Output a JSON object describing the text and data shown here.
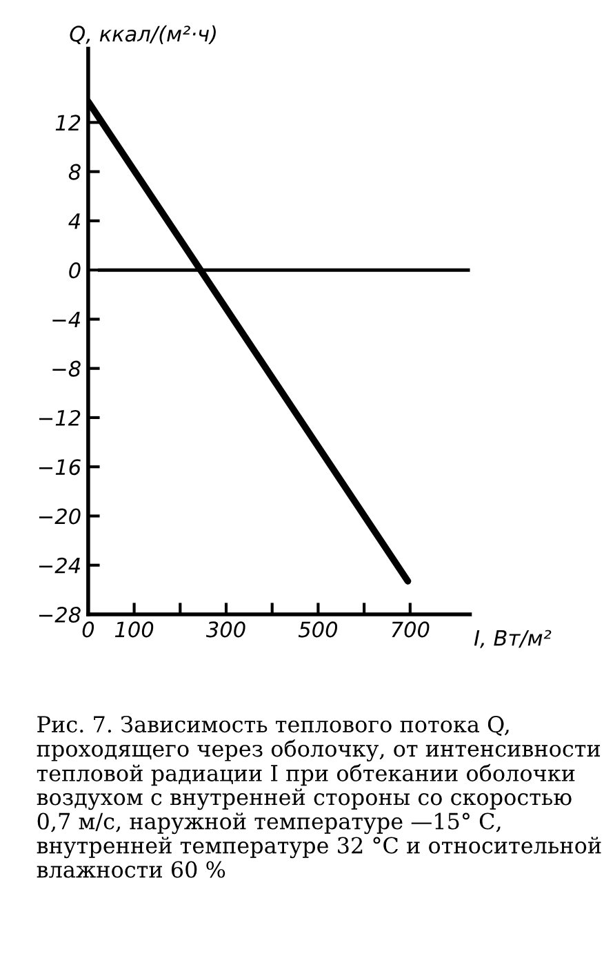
{
  "chart_data": {
    "type": "line",
    "xlabel": "I, Вт/м²",
    "ylabel": "Q, ккал/(м²·ч)",
    "series": [
      {
        "color": "#000000",
        "x": [
          0,
          695
        ],
        "values": [
          13.7,
          -25.3
        ]
      }
    ],
    "xlim": [
      0,
      830
    ],
    "ylim": [
      -28,
      18
    ],
    "xticks": [
      0,
      100,
      {
        "value": 200,
        "label": null
      },
      300,
      {
        "value": 400,
        "label": null
      },
      500,
      {
        "value": 600,
        "label": null
      },
      700
    ],
    "yticks": [
      12,
      8,
      4,
      0,
      {
        "value": -4,
        "label": "−4"
      },
      {
        "value": -8,
        "label": "−8"
      },
      {
        "value": -12,
        "label": "−12"
      },
      {
        "value": -16,
        "label": "−16"
      },
      {
        "value": -20,
        "label": "−20"
      },
      {
        "value": -24,
        "label": "−24"
      },
      {
        "value": -28,
        "label": "−28"
      }
    ],
    "ref_lines": [
      {
        "axis": "y",
        "value": 0,
        "color": "#000000",
        "line_style": "solid"
      }
    ],
    "grid": false,
    "legend": false,
    "marker": "none",
    "line_style": "solid",
    "annotations": [
      "Рис. 7. Зависимость теплового потока Q, проходящего через оболочку, от интенсивности тепловой радиации I при обтекании оболочки воздухом с внутренней стороны со скоростью 0,7 м/с, наружной температуре —15° С, внутренней температуре 32 °С и относительной влажности 60 %"
    ]
  }
}
